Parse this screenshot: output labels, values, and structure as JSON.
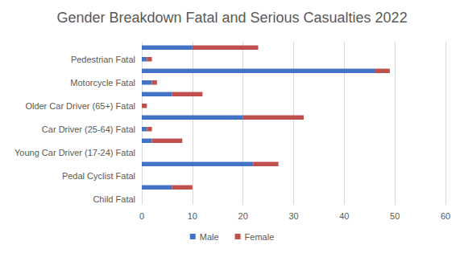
{
  "chart_data": {
    "type": "bar",
    "title": "Gender Breakdown Fatal and Serious Casualties 2022",
    "orientation": "horizontal",
    "stacked": true,
    "grid": true,
    "legend": "bottom",
    "categories": [
      "Child Fatal",
      null,
      "Pedal Cyclist Fatal",
      null,
      "Young Car Driver (17-24) Fatal",
      null,
      "Car Driver (25-64) Fatal",
      null,
      "Older Car Driver (65+) Fatal",
      null,
      "Motorcycle Fatal",
      null,
      "Pedestrian Fatal",
      null
    ],
    "series": [
      {
        "name": "Male",
        "color": "#4472c4",
        "values": [
          0,
          6,
          0,
          22,
          0,
          2,
          1,
          20,
          0,
          6,
          2,
          46,
          1,
          10
        ]
      },
      {
        "name": "Female",
        "color": "#c0504d",
        "values": [
          0,
          4,
          0,
          5,
          0,
          6,
          1,
          12,
          1,
          6,
          1,
          3,
          1,
          13
        ]
      }
    ],
    "xlim": [
      0,
      60
    ],
    "xticks": [
      0,
      10,
      20,
      30,
      40,
      50,
      60
    ]
  }
}
